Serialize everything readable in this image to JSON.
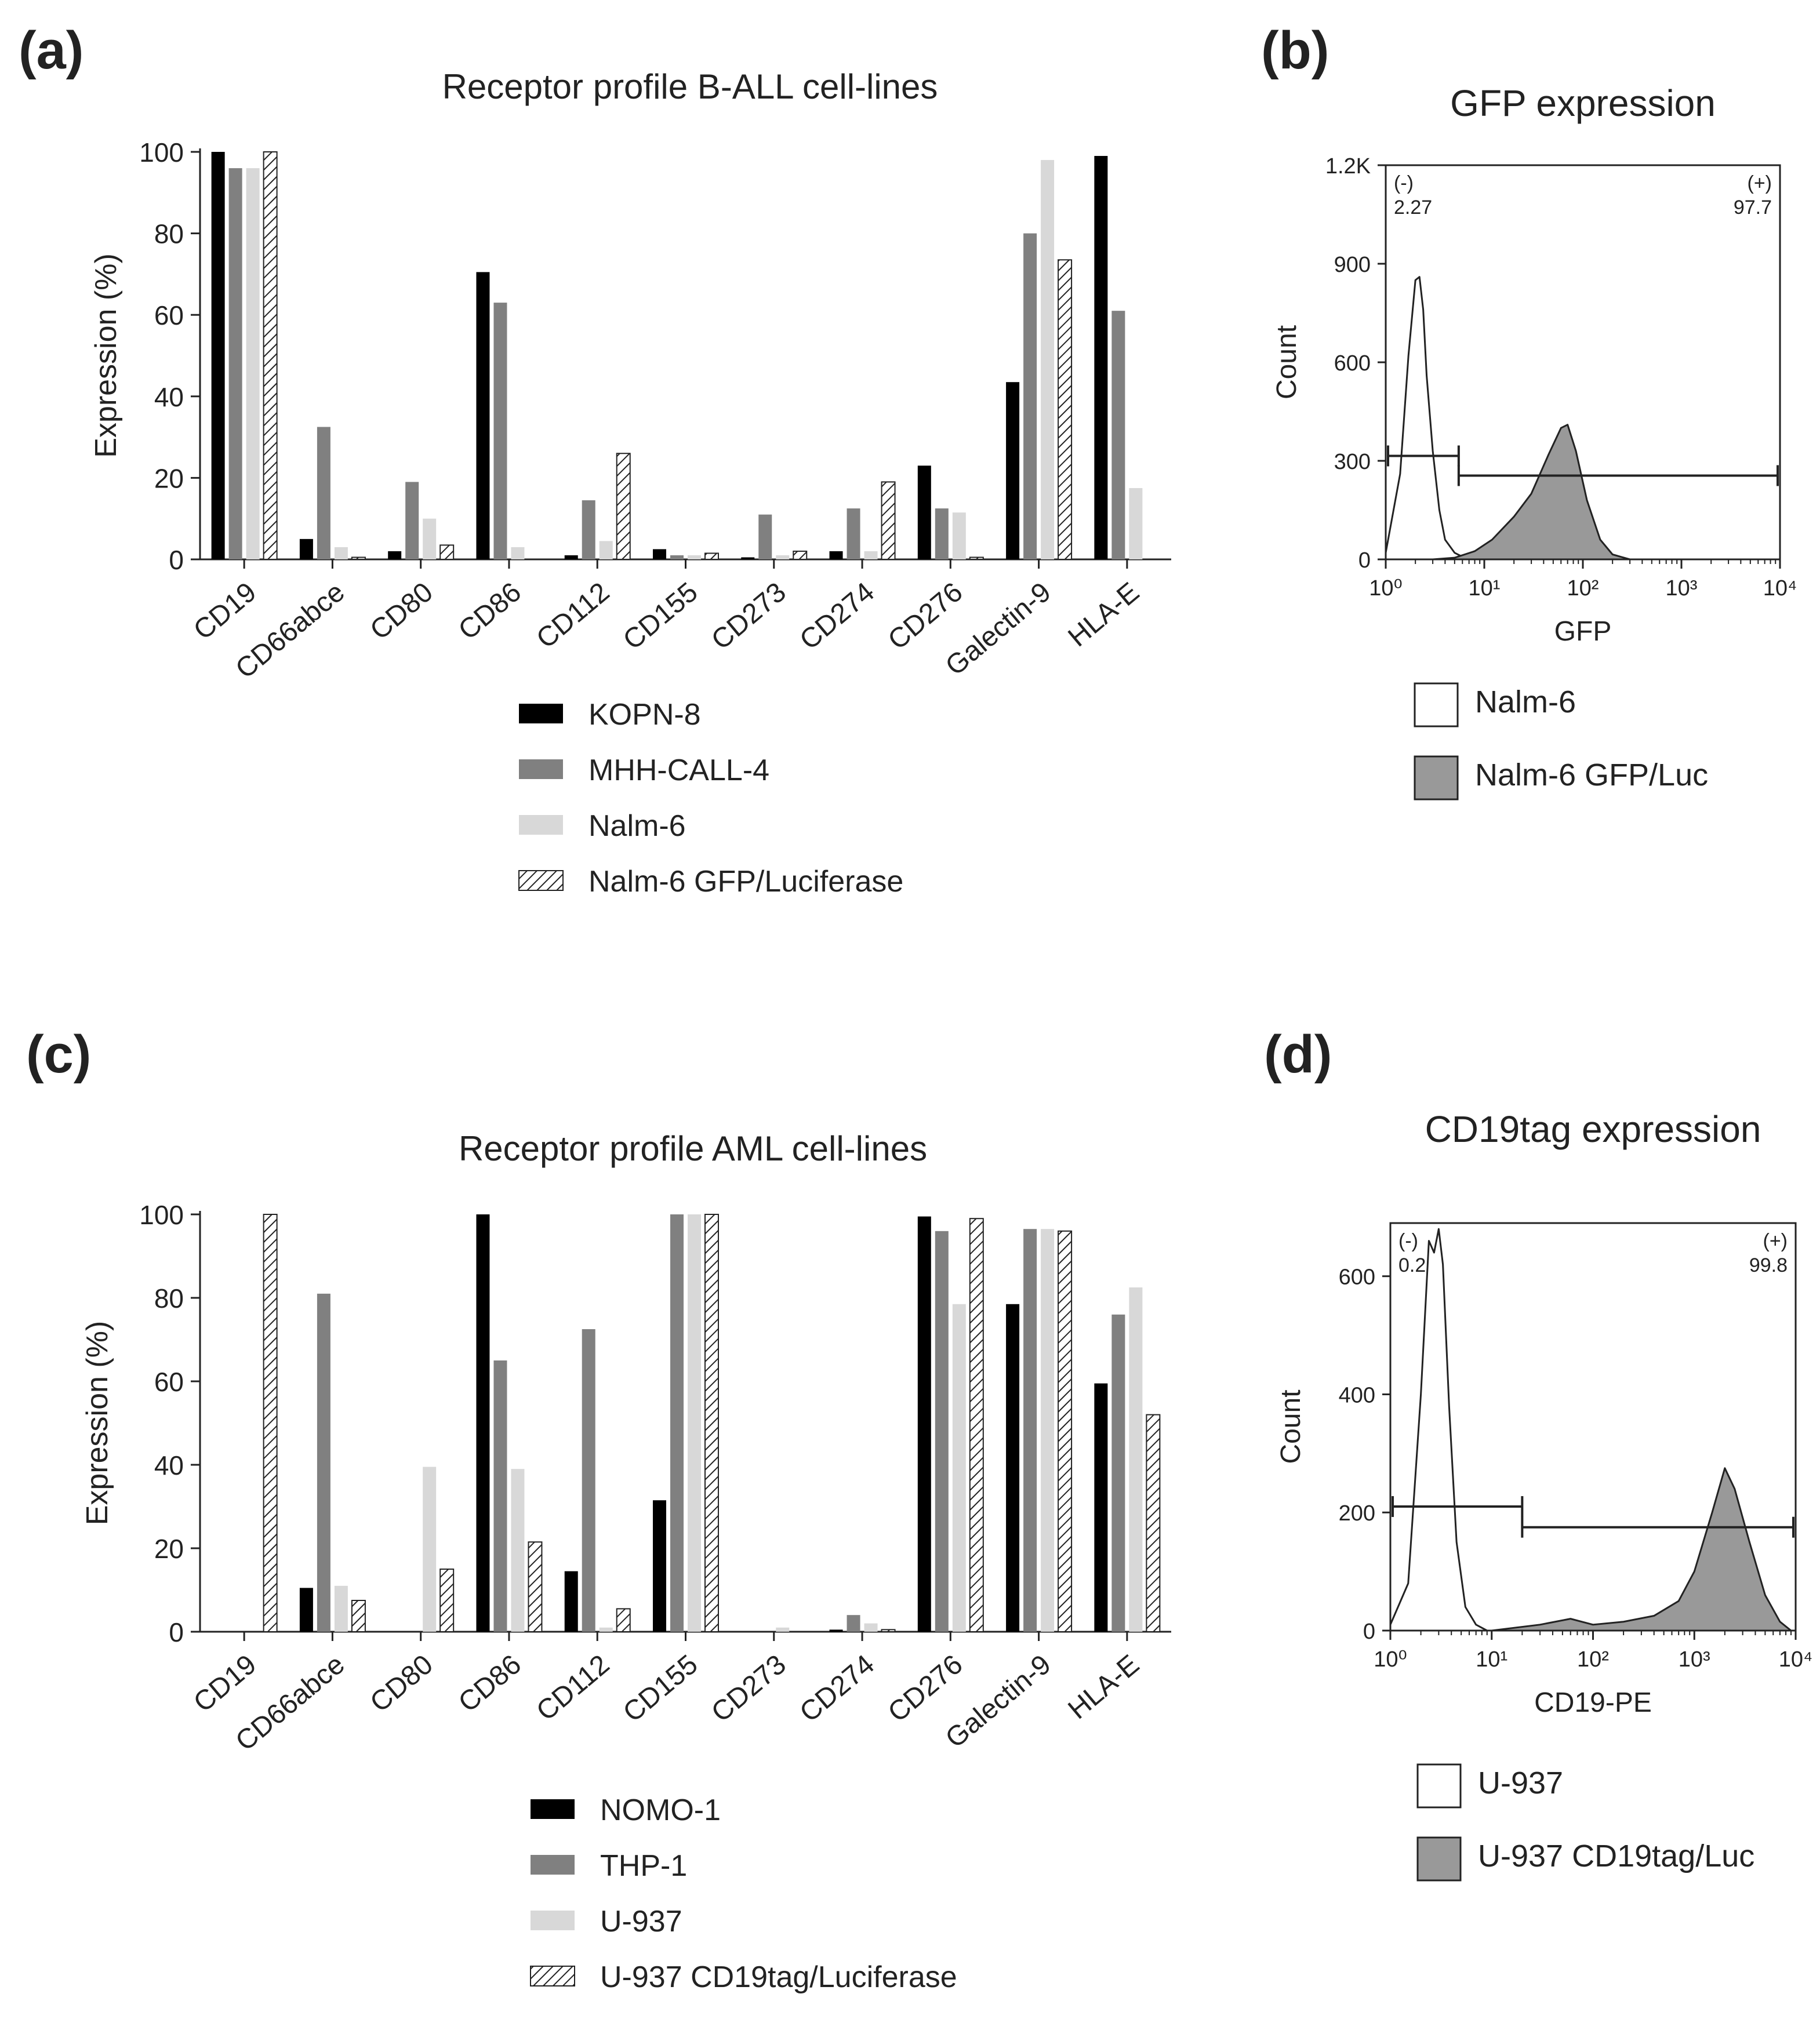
{
  "panels": [
    {
      "letter": "(a)",
      "chart_data": {
        "type": "bar",
        "title": "Receptor profile B-ALL cell-lines",
        "xlabel": "",
        "ylabel": "Expression (%)",
        "ylim": [
          0,
          100
        ],
        "yticks": [
          "0",
          "20",
          "40",
          "60",
          "80",
          "100"
        ],
        "categories": [
          "CD19",
          "CD66abce",
          "CD80",
          "CD86",
          "CD112",
          "CD155",
          "CD273",
          "CD274",
          "CD276",
          "Galectin-9",
          "HLA-E"
        ],
        "series": [
          {
            "name": "KOPN-8",
            "color": "#000000",
            "pattern": "solid",
            "values": [
              100,
              5,
              2,
              70.5,
              1,
              2.5,
              0.5,
              2,
              23,
              43.5,
              99
            ]
          },
          {
            "name": "MHH-CALL-4",
            "color": "#808080",
            "pattern": "solid",
            "values": [
              96,
              32.5,
              19,
              63,
              14.5,
              1,
              11,
              12.5,
              12.5,
              80,
              61
            ]
          },
          {
            "name": "Nalm-6",
            "color": "#d8d8d8",
            "pattern": "solid",
            "values": [
              96,
              3,
              10,
              3,
              4.5,
              1,
              1,
              2,
              11.5,
              98,
              17.5
            ]
          },
          {
            "name": "Nalm-6 GFP/Luciferase",
            "color": "#000000",
            "pattern": "hatch",
            "values": [
              100,
              0.5,
              3.5,
              0,
              26,
              1.5,
              2,
              19,
              0.5,
              73.5,
              0
            ]
          }
        ],
        "legend_position": "bottom"
      }
    },
    {
      "letter": "(b)",
      "chart_data": {
        "type": "histogram",
        "title": "GFP expression",
        "xlabel": "GFP",
        "ylabel": "Count",
        "xscale": "log",
        "xlim": [
          1,
          10000
        ],
        "xticks": [
          "10⁰",
          "10¹",
          "10²",
          "10³",
          "10⁴"
        ],
        "ylim": [
          0,
          1200
        ],
        "yticks": [
          "0",
          "300",
          "600",
          "900",
          "1.2K"
        ],
        "gates": [
          {
            "label": "(-)",
            "value": "2.27",
            "x_range": [
              1,
              5.5
            ],
            "y": 315
          },
          {
            "label": "(+)",
            "value": "97.7",
            "x_range": [
              5.5,
              10000
            ],
            "y": 255
          }
        ],
        "series": [
          {
            "name": "Nalm-6",
            "fill": "#ffffff",
            "x": [
              1,
              1.4,
              1.7,
              2,
              2.2,
              2.4,
              2.6,
              3,
              3.5,
              4,
              5,
              6,
              8,
              10
            ],
            "counts": [
              20,
              260,
              620,
              850,
              860,
              760,
              560,
              330,
              150,
              60,
              20,
              8,
              2,
              0
            ]
          },
          {
            "name": "Nalm-6 GFP/Luc",
            "fill": "#999999",
            "x": [
              3,
              5,
              8,
              12,
              20,
              30,
              45,
              60,
              70,
              85,
              110,
              150,
              200,
              300
            ],
            "counts": [
              0,
              5,
              25,
              60,
              130,
              200,
              320,
              400,
              410,
              330,
              180,
              60,
              15,
              0
            ]
          }
        ],
        "legend": [
          "Nalm-6",
          "Nalm-6 GFP/Luc"
        ]
      }
    },
    {
      "letter": "(c)",
      "chart_data": {
        "type": "bar",
        "title": "Receptor profile AML cell-lines",
        "xlabel": "",
        "ylabel": "Expression (%)",
        "ylim": [
          0,
          100
        ],
        "yticks": [
          "0",
          "20",
          "40",
          "60",
          "80",
          "100"
        ],
        "categories": [
          "CD19",
          "CD66abce",
          "CD80",
          "CD86",
          "CD112",
          "CD155",
          "CD273",
          "CD274",
          "CD276",
          "Galectin-9",
          "HLA-E"
        ],
        "series": [
          {
            "name": "NOMO-1",
            "color": "#000000",
            "pattern": "solid",
            "values": [
              0,
              10.5,
              0,
              100,
              14.5,
              31.5,
              0,
              0.5,
              99.5,
              78.5,
              59.5
            ]
          },
          {
            "name": "THP-1",
            "color": "#808080",
            "pattern": "solid",
            "values": [
              0,
              81,
              0,
              65,
              72.5,
              100,
              0,
              4,
              96,
              96.5,
              76
            ]
          },
          {
            "name": "U-937",
            "color": "#d8d8d8",
            "pattern": "solid",
            "values": [
              0,
              11,
              39.5,
              39,
              1,
              100,
              1,
              2,
              78.5,
              96.5,
              82.5
            ]
          },
          {
            "name": "U-937 CD19tag/Luciferase",
            "color": "#000000",
            "pattern": "hatch",
            "values": [
              100,
              7.5,
              15,
              21.5,
              5.5,
              100,
              0,
              0.5,
              99,
              96,
              52
            ]
          }
        ],
        "legend_position": "bottom"
      }
    },
    {
      "letter": "(d)",
      "chart_data": {
        "type": "histogram",
        "title": "CD19tag expression",
        "xlabel": "CD19-PE",
        "ylabel": "Count",
        "xscale": "log",
        "xlim": [
          1,
          10000
        ],
        "xticks": [
          "10⁰",
          "10¹",
          "10²",
          "10³",
          "10⁴"
        ],
        "ylim": [
          0,
          690
        ],
        "yticks": [
          "0",
          "200",
          "400",
          "600"
        ],
        "gates": [
          {
            "label": "(-)",
            "value": "0.2",
            "x_range": [
              1,
              20
            ],
            "y": 210
          },
          {
            "label": "(+)",
            "value": "99.8",
            "x_range": [
              20,
              10000
            ],
            "y": 175
          }
        ],
        "series": [
          {
            "name": "U-937",
            "fill": "#ffffff",
            "x": [
              1,
              1.5,
              2,
              2.4,
              2.7,
              3,
              3.3,
              3.8,
              4.5,
              5.5,
              7,
              9
            ],
            "counts": [
              10,
              80,
              400,
              660,
              640,
              680,
              620,
              380,
              150,
              40,
              10,
              0
            ]
          },
          {
            "name": "U-937 CD19tag/Luc",
            "fill": "#999999",
            "x": [
              10,
              30,
              60,
              100,
              200,
              400,
              700,
              1000,
              1500,
              2000,
              2500,
              3500,
              5000,
              7000,
              9000
            ],
            "counts": [
              0,
              10,
              20,
              10,
              15,
              25,
              50,
              100,
              200,
              275,
              240,
              150,
              60,
              15,
              0
            ]
          }
        ],
        "legend": [
          "U-937",
          "U-937 CD19tag/Luc"
        ]
      }
    }
  ]
}
